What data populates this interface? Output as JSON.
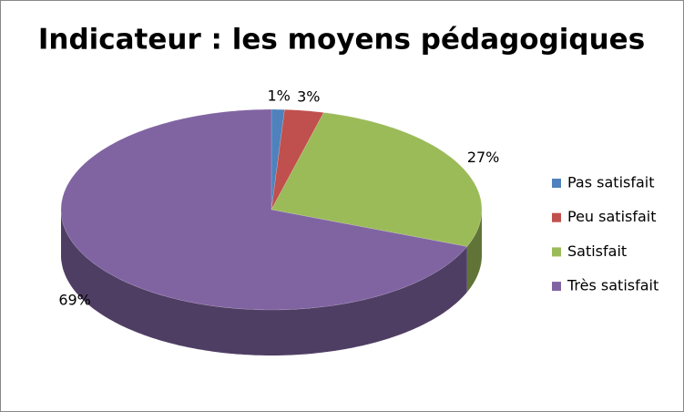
{
  "chart_data": {
    "type": "pie",
    "title": "Indicateur : les moyens pédagogiques",
    "categories": [
      "Pas satisfait",
      "Peu satisfait",
      "Satisfait",
      "Très satisfait"
    ],
    "values": [
      1,
      3,
      27,
      69
    ],
    "value_labels": [
      "1%",
      "3%",
      "27%",
      "69%"
    ],
    "colors": [
      "#4f81bd",
      "#c0504d",
      "#9bbb59",
      "#8064a2"
    ],
    "legend": "right"
  }
}
